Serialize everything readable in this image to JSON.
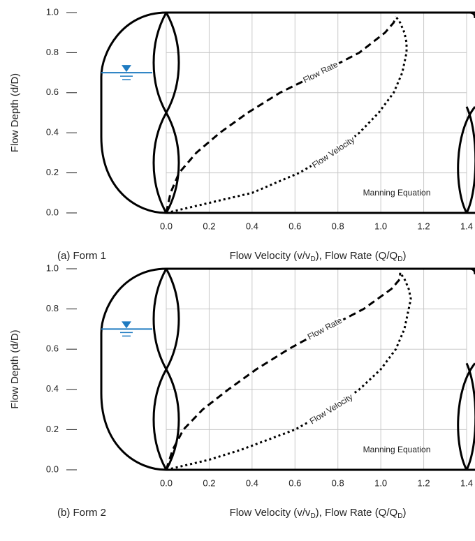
{
  "chart_data": [
    {
      "type": "line",
      "caption": "(a) Form 1",
      "ylabel": "Flow Depth (d/D)",
      "xlabel": [
        "Flow Velocity (v/v",
        "D",
        "), Flow Rate (Q/Q",
        "D",
        ")"
      ],
      "annotation": "Manning Equation",
      "xlim": [
        0,
        1.4
      ],
      "ylim": [
        0,
        1
      ],
      "xticks": [
        {
          "value": 0,
          "label": "0.0"
        },
        0.2,
        0.4,
        0.6,
        0.8,
        {
          "value": 1,
          "label": "1.0"
        },
        1.2,
        1.4
      ],
      "yticks": [
        {
          "value": 0,
          "label": "0.0"
        },
        0.2,
        0.4,
        0.6,
        0.8,
        {
          "value": 1,
          "label": "1.0"
        }
      ],
      "grid": true,
      "series": [
        {
          "name": "Flow Rate",
          "color": "#000000",
          "style": "dashed",
          "x": [
            0,
            0.02,
            0.06,
            0.14,
            0.25,
            0.38,
            0.53,
            0.72,
            0.9,
            1.02,
            1.06,
            1.07
          ],
          "y": [
            0,
            0.1,
            0.2,
            0.3,
            0.4,
            0.5,
            0.6,
            0.7,
            0.8,
            0.9,
            0.95,
            0.98
          ]
        },
        {
          "name": "Flow Velocity",
          "color": "#000000",
          "style": "dotted",
          "x": [
            0,
            0.2,
            0.4,
            0.62,
            0.78,
            0.9,
            0.99,
            1.06,
            1.1,
            1.12,
            1.12,
            1.11,
            1.09,
            1.07
          ],
          "y": [
            0,
            0.05,
            0.1,
            0.2,
            0.3,
            0.4,
            0.5,
            0.6,
            0.7,
            0.8,
            0.85,
            0.9,
            0.95,
            0.98
          ]
        }
      ]
    },
    {
      "type": "line",
      "caption": "(b) Form 2",
      "ylabel": "Flow Depth (d/D)",
      "xlabel": [
        "Flow Velocity (v/v",
        "D",
        "), Flow Rate (Q/Q",
        "D",
        ")"
      ],
      "annotation": "Manning Equation",
      "xlim": [
        0,
        1.4
      ],
      "ylim": [
        0,
        1
      ],
      "xticks": [
        {
          "value": 0,
          "label": "0.0"
        },
        0.2,
        0.4,
        0.6,
        0.8,
        {
          "value": 1,
          "label": "1.0"
        },
        1.2,
        1.4
      ],
      "yticks": [
        {
          "value": 0,
          "label": "0.0"
        },
        0.2,
        0.4,
        0.6,
        0.8,
        {
          "value": 1,
          "label": "1.0"
        }
      ],
      "grid": true,
      "series": [
        {
          "name": "Flow Rate",
          "color": "#000000",
          "style": "dashed",
          "x": [
            0,
            0.03,
            0.08,
            0.17,
            0.29,
            0.42,
            0.57,
            0.74,
            0.92,
            1.05,
            1.09,
            1.09
          ],
          "y": [
            0,
            0.1,
            0.2,
            0.3,
            0.4,
            0.5,
            0.6,
            0.7,
            0.8,
            0.9,
            0.95,
            0.98
          ]
        },
        {
          "name": "Flow Velocity",
          "color": "#000000",
          "style": "dotted",
          "x": [
            0,
            0.2,
            0.35,
            0.6,
            0.77,
            0.9,
            1.0,
            1.07,
            1.11,
            1.13,
            1.14,
            1.13,
            1.11,
            1.09
          ],
          "y": [
            0,
            0.05,
            0.1,
            0.2,
            0.3,
            0.4,
            0.5,
            0.6,
            0.7,
            0.8,
            0.85,
            0.9,
            0.95,
            0.98
          ]
        }
      ]
    }
  ]
}
